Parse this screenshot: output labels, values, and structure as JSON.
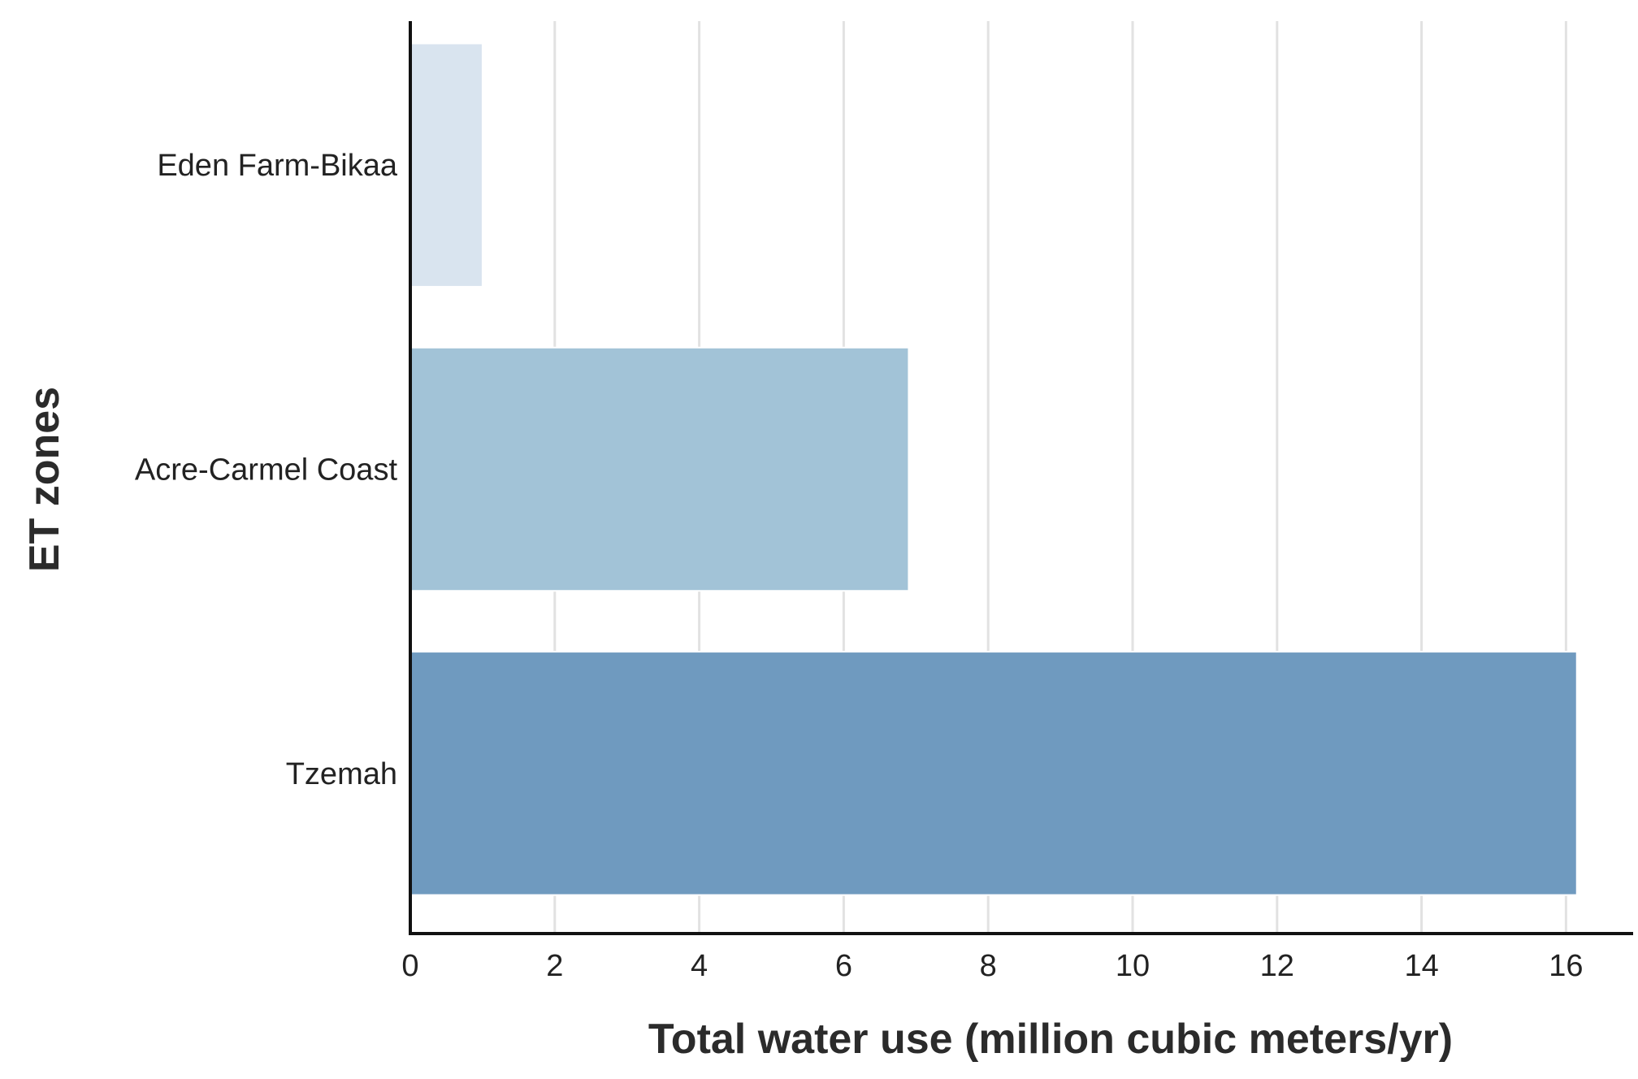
{
  "chart_data": {
    "type": "bar",
    "orientation": "horizontal",
    "title": "",
    "xlabel": "Total water use (million cubic meters/yr)",
    "ylabel": "ET zones",
    "categories": [
      "Eden Farm-Bikaa",
      "Acre-Carmel Coast",
      "Tzemah"
    ],
    "values": [
      1.0,
      6.9,
      16.15
    ],
    "colors": [
      "#d9e4ef",
      "#a2c3d7",
      "#6f9abf"
    ],
    "xlim": [
      0,
      17
    ],
    "xticks": [
      0,
      2,
      4,
      6,
      8,
      10,
      12,
      14,
      16
    ],
    "grid": "vertical",
    "legend": "none"
  }
}
